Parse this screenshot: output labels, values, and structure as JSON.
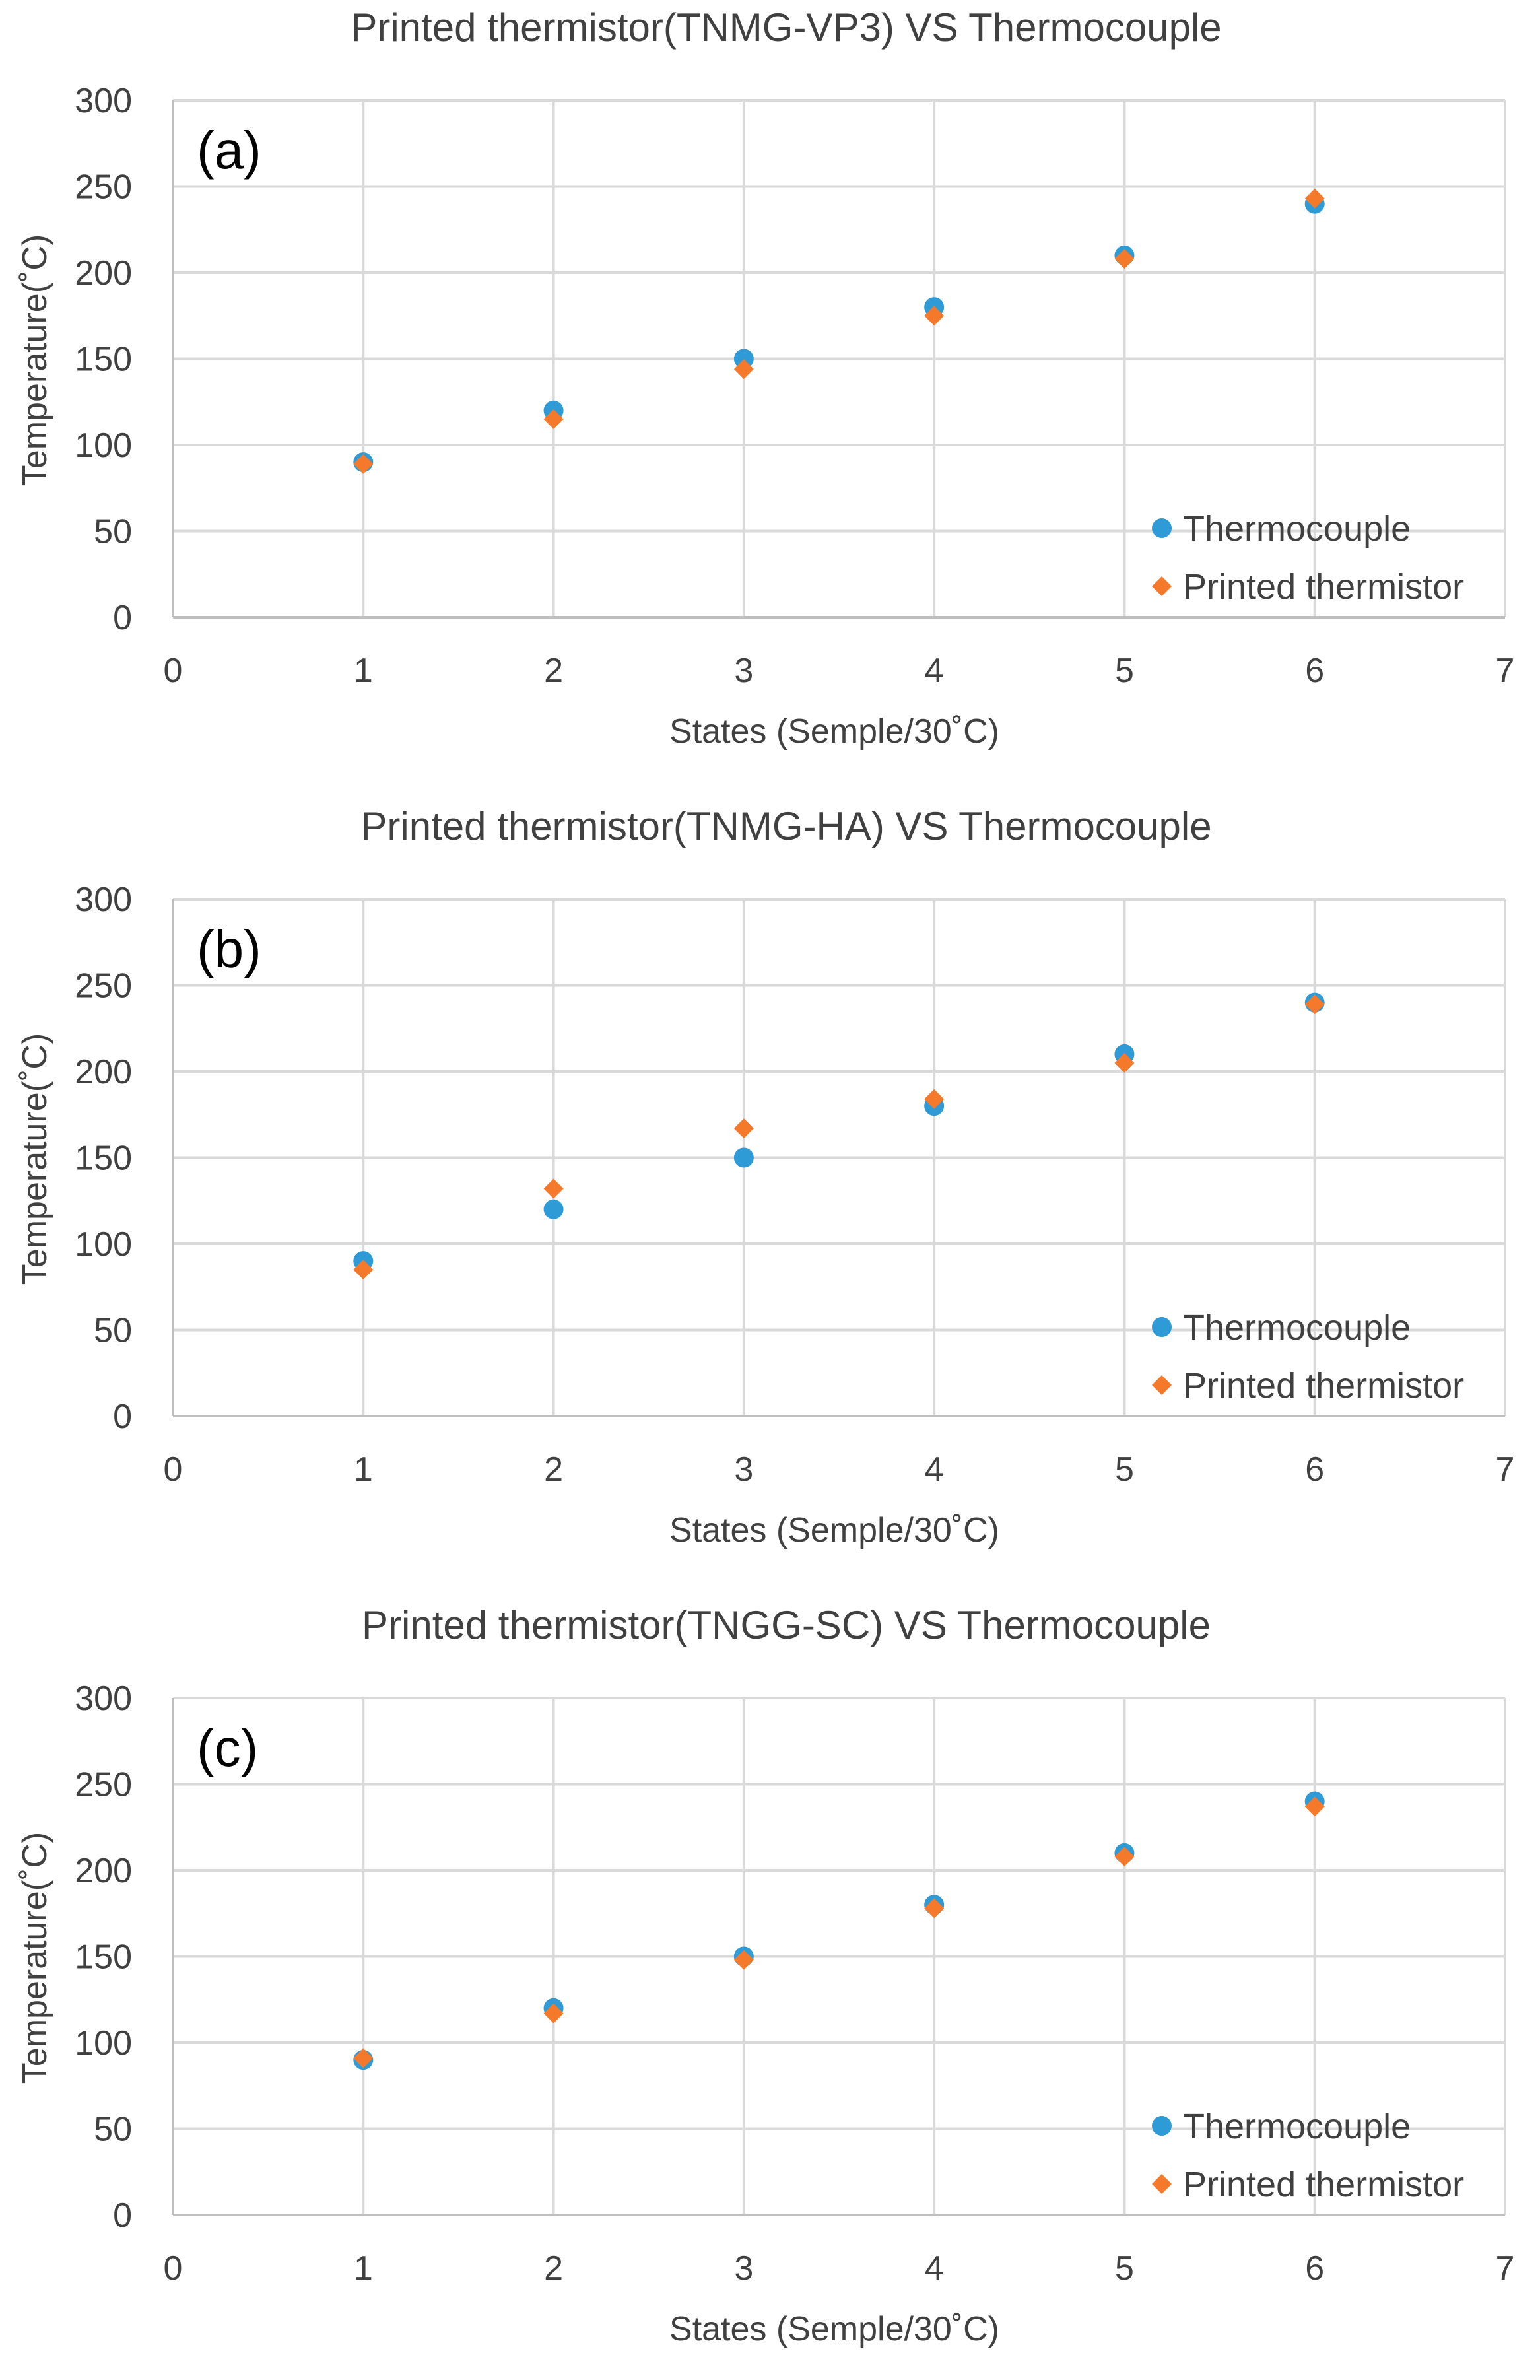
{
  "colors": {
    "thermocouple": "#2e9bd6",
    "printed_thermistor": "#f5792a",
    "text": "#404040",
    "grid": "#d9d9d9"
  },
  "chart_data": [
    {
      "type": "scatter",
      "panel_label": "(a)",
      "title": "Printed thermistor(TNMG-VP3) VS Thermocouple",
      "xlabel": "States (Semple/30˚C)",
      "ylabel": "Temperature(˚C)",
      "xlim": [
        0,
        7
      ],
      "ylim": [
        0,
        300
      ],
      "x_ticks": [
        0,
        1,
        2,
        3,
        4,
        5,
        6,
        7
      ],
      "y_ticks": [
        0,
        50,
        100,
        150,
        200,
        250,
        300
      ],
      "grid": true,
      "legend_position": "bottom-right",
      "series": [
        {
          "name": "Thermocouple",
          "marker": "circle",
          "color": "#2e9bd6",
          "x": [
            1,
            2,
            3,
            4,
            5,
            6
          ],
          "values": [
            90,
            120,
            150,
            180,
            210,
            240
          ]
        },
        {
          "name": "Printed thermistor",
          "marker": "diamond",
          "color": "#f5792a",
          "x": [
            1,
            2,
            3,
            4,
            5,
            6
          ],
          "values": [
            89,
            115,
            144,
            175,
            208,
            243
          ]
        }
      ]
    },
    {
      "type": "scatter",
      "panel_label": "(b)",
      "title": "Printed thermistor(TNMG-HA) VS Thermocouple",
      "xlabel": "States (Semple/30˚C)",
      "ylabel": "Temperature(˚C)",
      "xlim": [
        0,
        7
      ],
      "ylim": [
        0,
        300
      ],
      "x_ticks": [
        0,
        1,
        2,
        3,
        4,
        5,
        6,
        7
      ],
      "y_ticks": [
        0,
        50,
        100,
        150,
        200,
        250,
        300
      ],
      "grid": true,
      "legend_position": "bottom-right",
      "series": [
        {
          "name": "Thermocouple",
          "marker": "circle",
          "color": "#2e9bd6",
          "x": [
            1,
            2,
            3,
            4,
            5,
            6
          ],
          "values": [
            90,
            120,
            150,
            180,
            210,
            240
          ]
        },
        {
          "name": "Printed thermistor",
          "marker": "diamond",
          "color": "#f5792a",
          "x": [
            1,
            2,
            3,
            4,
            5,
            6
          ],
          "values": [
            85,
            132,
            167,
            184,
            205,
            239
          ]
        }
      ]
    },
    {
      "type": "scatter",
      "panel_label": "(c)",
      "title": "Printed thermistor(TNGG-SC) VS Thermocouple",
      "xlabel": "States (Semple/30˚C)",
      "ylabel": "Temperature(˚C)",
      "xlim": [
        0,
        7
      ],
      "ylim": [
        0,
        300
      ],
      "x_ticks": [
        0,
        1,
        2,
        3,
        4,
        5,
        6,
        7
      ],
      "y_ticks": [
        0,
        50,
        100,
        150,
        200,
        250,
        300
      ],
      "grid": true,
      "legend_position": "bottom-right",
      "series": [
        {
          "name": "Thermocouple",
          "marker": "circle",
          "color": "#2e9bd6",
          "x": [
            1,
            2,
            3,
            4,
            5,
            6
          ],
          "values": [
            90,
            120,
            150,
            180,
            210,
            240
          ]
        },
        {
          "name": "Printed thermistor",
          "marker": "diamond",
          "color": "#f5792a",
          "x": [
            1,
            2,
            3,
            4,
            5,
            6
          ],
          "values": [
            91,
            117,
            148,
            178,
            208,
            237
          ]
        }
      ]
    }
  ]
}
